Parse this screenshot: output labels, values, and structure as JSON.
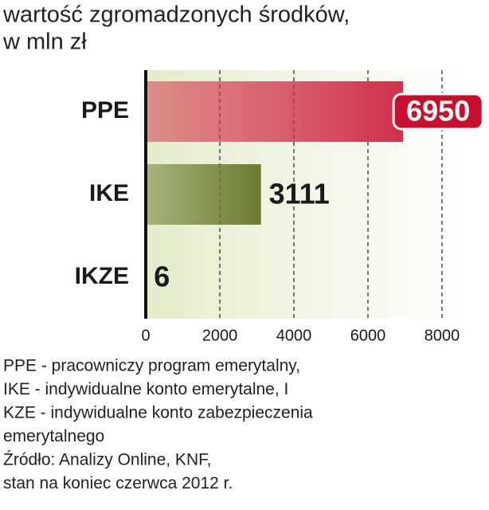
{
  "chart_data": {
    "type": "bar",
    "orientation": "horizontal",
    "title": [
      "wartość zgromadzonych środków,",
      "w mln zł"
    ],
    "categories": [
      "PPE",
      "IKE",
      "IKZE"
    ],
    "values": [
      6950,
      3111,
      6
    ],
    "colors": [
      "#d0304a",
      "#6b7a2e",
      "#6b7a2e"
    ],
    "xlim": [
      0,
      8000
    ],
    "xticks": [
      0,
      2000,
      4000,
      6000,
      8000
    ],
    "grid": true,
    "notes": [
      "PPE - pracowniczy program emerytalny,",
      "IKE - indywidualne konto emerytalne, I",
      "KZE - indywidualne konto zabezpieczenia",
      "emerytalnego",
      "Źródło: Analizy Online, KNF,",
      "stan na koniec czerwca 2012 r."
    ]
  }
}
